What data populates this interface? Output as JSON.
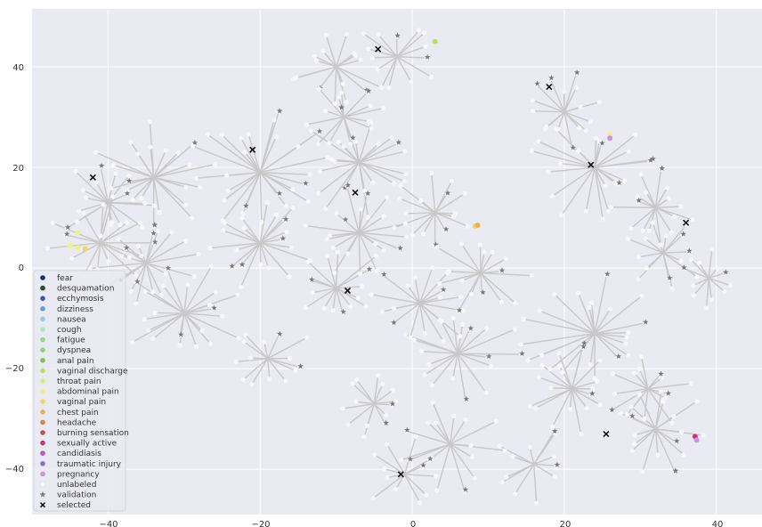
{
  "chart_data": {
    "type": "scatter",
    "title": "",
    "xlabel": "",
    "ylabel": "",
    "xlim": [
      -50,
      46
    ],
    "ylim": [
      -49,
      51.5
    ],
    "x_ticks": [
      -40,
      -20,
      0,
      20,
      40
    ],
    "y_ticks": [
      40,
      20,
      0,
      -20,
      -40
    ],
    "tick_labels": {
      "x": [
        "−40",
        "−20",
        "0",
        "20",
        "40"
      ],
      "y": [
        "40",
        "20",
        "0",
        "−20",
        "−40"
      ]
    },
    "grid": true,
    "background": "#eaeaf2",
    "legend_position": "lower-left",
    "legend": [
      {
        "label": "fear",
        "color": "#1b2a6b",
        "marker": "circle"
      },
      {
        "label": "desquamation",
        "color": "#2e4a2a",
        "marker": "circle"
      },
      {
        "label": "ecchymosis",
        "color": "#2f5fb4",
        "marker": "circle"
      },
      {
        "label": "dizziness",
        "color": "#5b9fd8",
        "marker": "circle"
      },
      {
        "label": "nausea",
        "color": "#8ed0e8",
        "marker": "circle"
      },
      {
        "label": "cough",
        "color": "#a9e6c6",
        "marker": "circle"
      },
      {
        "label": "fatigue",
        "color": "#98d87a",
        "marker": "circle"
      },
      {
        "label": "dyspnea",
        "color": "#8fd36a",
        "marker": "circle"
      },
      {
        "label": "anal pain",
        "color": "#7fc24e",
        "marker": "circle"
      },
      {
        "label": "vaginal discharge",
        "color": "#b4e06a",
        "marker": "circle"
      },
      {
        "label": "throat pain",
        "color": "#d8ea7a",
        "marker": "circle"
      },
      {
        "label": "abdominal pain",
        "color": "#f2ee86",
        "marker": "circle"
      },
      {
        "label": "vaginal pain",
        "color": "#f4d463",
        "marker": "circle"
      },
      {
        "label": "chest pain",
        "color": "#e9b15a",
        "marker": "circle"
      },
      {
        "label": "headache",
        "color": "#d4834a",
        "marker": "circle"
      },
      {
        "label": "burning sensation",
        "color": "#c0513d",
        "marker": "circle"
      },
      {
        "label": "sexually active",
        "color": "#c13a72",
        "marker": "circle"
      },
      {
        "label": "candidiasis",
        "color": "#b658c6",
        "marker": "circle"
      },
      {
        "label": "traumatic injury",
        "color": "#9467cf",
        "marker": "circle"
      },
      {
        "label": "pregnancy",
        "color": "#d48ee3",
        "marker": "circle"
      },
      {
        "label": "unlabeled",
        "color": "#f7f7f7",
        "marker": "circle"
      },
      {
        "label": "validation",
        "color": "#777777",
        "marker": "star"
      },
      {
        "label": "selected",
        "color": "#111111",
        "marker": "x"
      }
    ],
    "clusters": [
      {
        "center": [
          -34,
          18
        ],
        "radius": 7,
        "spokes": 22,
        "validation": 4
      },
      {
        "center": [
          -20,
          19
        ],
        "radius": 8,
        "spokes": 26,
        "validation": 5
      },
      {
        "center": [
          -40,
          13
        ],
        "radius": 6,
        "spokes": 18,
        "validation": 3
      },
      {
        "center": [
          -41,
          5
        ],
        "radius": 6,
        "spokes": 16,
        "validation": 2
      },
      {
        "center": [
          -35,
          1
        ],
        "radius": 6,
        "spokes": 18,
        "validation": 3
      },
      {
        "center": [
          -30,
          -9
        ],
        "radius": 7,
        "spokes": 22,
        "validation": 4
      },
      {
        "center": [
          -20,
          5
        ],
        "radius": 6,
        "spokes": 20,
        "validation": 4
      },
      {
        "center": [
          -19,
          -18
        ],
        "radius": 5,
        "spokes": 14,
        "validation": 2
      },
      {
        "center": [
          -10,
          40
        ],
        "radius": 6,
        "spokes": 16,
        "validation": 3
      },
      {
        "center": [
          -2,
          42
        ],
        "radius": 5,
        "spokes": 14,
        "validation": 2
      },
      {
        "center": [
          -9,
          30
        ],
        "radius": 5,
        "spokes": 14,
        "validation": 2
      },
      {
        "center": [
          -7,
          21
        ],
        "radius": 7,
        "spokes": 22,
        "validation": 4
      },
      {
        "center": [
          -7,
          7
        ],
        "radius": 6,
        "spokes": 20,
        "validation": 4
      },
      {
        "center": [
          -10,
          -4
        ],
        "radius": 6,
        "spokes": 16,
        "validation": 3
      },
      {
        "center": [
          3,
          11
        ],
        "radius": 5,
        "spokes": 16,
        "validation": 3
      },
      {
        "center": [
          9,
          -1
        ],
        "radius": 6,
        "spokes": 16,
        "validation": 3
      },
      {
        "center": [
          1,
          -7
        ],
        "radius": 6,
        "spokes": 18,
        "validation": 3
      },
      {
        "center": [
          6,
          -17
        ],
        "radius": 7,
        "spokes": 18,
        "validation": 4
      },
      {
        "center": [
          -5,
          -27
        ],
        "radius": 5,
        "spokes": 14,
        "validation": 2
      },
      {
        "center": [
          5,
          -35
        ],
        "radius": 6,
        "spokes": 16,
        "validation": 3
      },
      {
        "center": [
          -1,
          -41
        ],
        "radius": 5,
        "spokes": 12,
        "validation": 2
      },
      {
        "center": [
          20,
          31
        ],
        "radius": 5,
        "spokes": 16,
        "validation": 4
      },
      {
        "center": [
          24,
          20
        ],
        "radius": 7,
        "spokes": 22,
        "validation": 4
      },
      {
        "center": [
          32,
          12
        ],
        "radius": 5,
        "spokes": 16,
        "validation": 3
      },
      {
        "center": [
          33,
          3
        ],
        "radius": 5,
        "spokes": 14,
        "validation": 3
      },
      {
        "center": [
          39,
          -2
        ],
        "radius": 4,
        "spokes": 12,
        "validation": 2
      },
      {
        "center": [
          24,
          -13
        ],
        "radius": 8,
        "spokes": 22,
        "validation": 3
      },
      {
        "center": [
          21,
          -24
        ],
        "radius": 6,
        "spokes": 18,
        "validation": 3
      },
      {
        "center": [
          31,
          -24
        ],
        "radius": 5,
        "spokes": 14,
        "validation": 3
      },
      {
        "center": [
          32,
          -32
        ],
        "radius": 6,
        "spokes": 18,
        "validation": 4
      },
      {
        "center": [
          16,
          -39
        ],
        "radius": 5,
        "spokes": 12,
        "validation": 2
      }
    ],
    "selected": [
      {
        "x": -42,
        "y": 18
      },
      {
        "x": -21,
        "y": 23.5
      },
      {
        "x": -7.5,
        "y": 15
      },
      {
        "x": -4.5,
        "y": 43.5
      },
      {
        "x": -8.5,
        "y": -4.5
      },
      {
        "x": -1.5,
        "y": -41
      },
      {
        "x": 18,
        "y": 36
      },
      {
        "x": 23.5,
        "y": 20.5
      },
      {
        "x": 36,
        "y": 9
      },
      {
        "x": 25.5,
        "y": -33
      }
    ],
    "labeled_points": [
      {
        "x": 3,
        "y": 45,
        "color": "#b4e06a"
      },
      {
        "x": 26,
        "y": 26.5,
        "color": "#f2ee86"
      },
      {
        "x": 26,
        "y": 25.8,
        "color": "#d48ee3"
      },
      {
        "x": 8.3,
        "y": 8.3,
        "color": "#f4d463"
      },
      {
        "x": 8.6,
        "y": 8.5,
        "color": "#e9b15a"
      },
      {
        "x": -44,
        "y": 7,
        "color": "#f2ee86"
      },
      {
        "x": -45,
        "y": 4.5,
        "color": "#f2ee86"
      },
      {
        "x": -44,
        "y": 4,
        "color": "#f2ee86"
      },
      {
        "x": -43,
        "y": 3.8,
        "color": "#f4d463"
      },
      {
        "x": 37.2,
        "y": -33.5,
        "color": "#c13a72"
      },
      {
        "x": 37.4,
        "y": -34.2,
        "color": "#d48ee3"
      }
    ]
  }
}
